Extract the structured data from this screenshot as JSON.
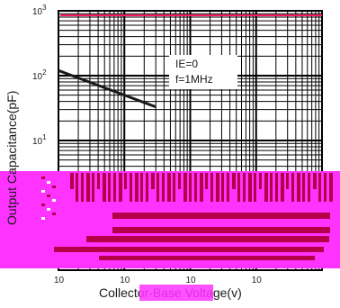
{
  "chart_data": {
    "type": "line",
    "xlabel": "Collector-Base Voltage(v)",
    "ylabel": "Output Capacitance(pF)",
    "x_scale": "log",
    "y_scale": "log",
    "xlim": [
      1,
      10000
    ],
    "ylim": [
      0.1,
      1000
    ],
    "grid": true,
    "y_ticks": [
      {
        "value": 1000,
        "base": "10",
        "exp": "3"
      },
      {
        "value": 100,
        "base": "10",
        "exp": "2"
      },
      {
        "value": 10,
        "base": "10",
        "exp": "1"
      }
    ],
    "x_ticks": [
      {
        "value": 1,
        "label": "10"
      },
      {
        "value": 10,
        "label": "10"
      },
      {
        "value": 100,
        "label": "10"
      },
      {
        "value": 1000,
        "label": "10"
      }
    ],
    "annotations": [
      "IE=0",
      "f=1MHz"
    ],
    "series": [
      {
        "x": [
          1,
          30
        ],
        "y": [
          120,
          33
        ]
      }
    ],
    "colors": {
      "series": "#1a1a1a",
      "grid": "#000000",
      "top_bar": "#ff1a60",
      "overlay_pink": "#ff33ff",
      "overlay_crimson": "#b30048"
    }
  }
}
